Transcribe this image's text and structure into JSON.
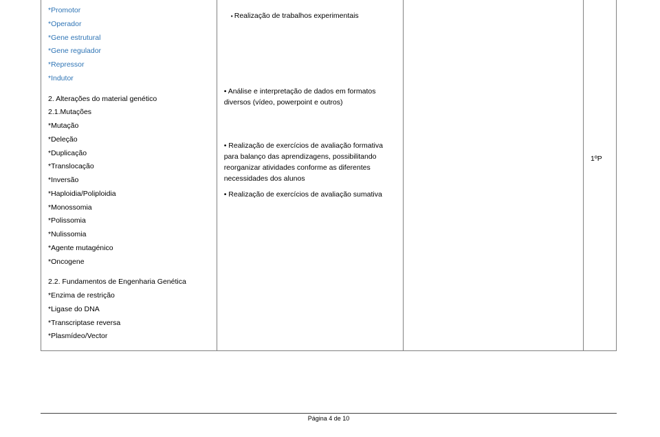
{
  "col1": {
    "blueItems": [
      "*Promotor",
      "*Operador",
      "*Gene estrutural",
      "*Gene regulador",
      "*Repressor",
      "*Indutor"
    ],
    "section2Title": "2. Alterações do material genético",
    "section21Title": "2.1.Mutações",
    "sub21": [
      "*Mutação",
      "*Deleção",
      "*Duplicação",
      "*Translocação",
      "*Inversão",
      "*Haploidia/Poliploidia",
      "*Monossomia",
      "*Polissomia",
      "*Nulissomia",
      "*Agente mutagénico",
      "*Oncogene"
    ],
    "section22Title": "2.2. Fundamentos de Engenharia Genética",
    "sub22": [
      "*Enzima de restrição",
      "*Ligase do DNA",
      "*Transcriptase reversa",
      "*Plasmídeo/Vector"
    ]
  },
  "col2": {
    "bullet1": "Realização de trabalhos experimentais",
    "dash1": "• Análise e interpretação de dados em formatos diversos (vídeo, powerpoint e outros)",
    "dash2": "• Realização de exercícios de avaliação formativa para balanço das aprendizagens, possibilitando reorganizar atividades conforme as diferentes necessidades dos alunos",
    "dash3": "• Realização de exercícios de avaliação sumativa"
  },
  "col4": {
    "value": "1ºP"
  },
  "footer": "Página 4 de 10"
}
